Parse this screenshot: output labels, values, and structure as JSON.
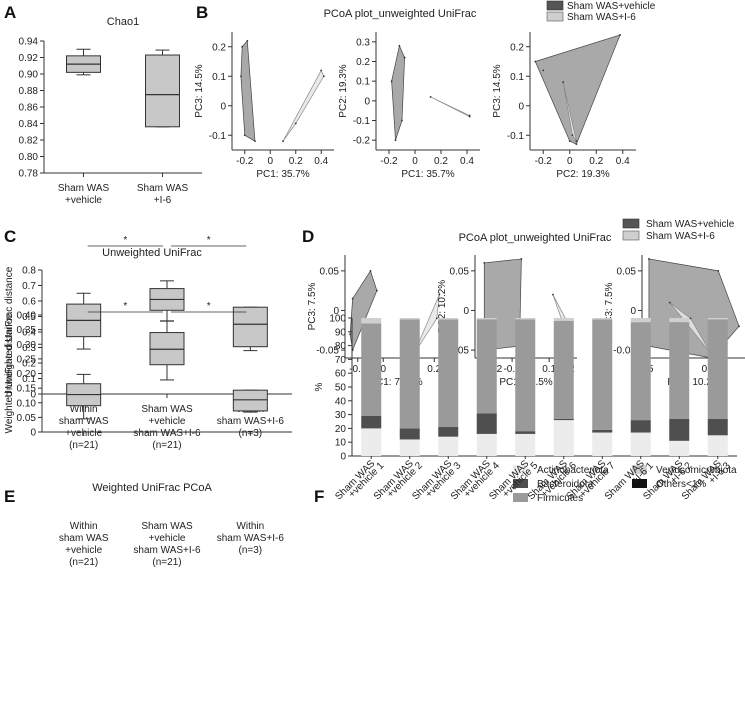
{
  "panels": {
    "A": "A",
    "B": "B",
    "C": "C",
    "D": "D",
    "E": "E",
    "F": "F"
  },
  "legend_wv": "Sham WAS+vehicle",
  "legend_wi": "Sham WAS+I-6",
  "colors": {
    "box": "#c8c8c8",
    "vehicle": "#555555",
    "i6": "#cfcfcf",
    "actino": "#ececec",
    "bacter": "#4f4f4f",
    "firm": "#9a9a9a",
    "verruco": "#cfcfcf",
    "others": "#111111"
  },
  "chart_data": [
    {
      "id": "A",
      "type": "box",
      "title": "Chao1",
      "ylim": [
        0.78,
        0.94
      ],
      "yticks": [
        "0.78",
        "0.80",
        "0.82",
        "0.84",
        "0.86",
        "0.88",
        "0.90",
        "0.92",
        "0.94"
      ],
      "categories": [
        [
          "Sham WAS",
          "+vehicle"
        ],
        [
          "Sham WAS",
          "+I-6"
        ]
      ],
      "boxes": [
        {
          "min": 0.899,
          "q1": 0.902,
          "median": 0.912,
          "q3": 0.922,
          "max": 0.93
        },
        {
          "min": 0.836,
          "q1": 0.836,
          "median": 0.875,
          "q3": 0.923,
          "max": 0.929
        }
      ]
    },
    {
      "id": "B",
      "type": "scatter",
      "title": "PCoA plot_unweighted UniFrac",
      "subplots": [
        {
          "xlabel": "PC1: 35.7%",
          "ylabel": "PC3: 14.5%",
          "xlim": [
            -0.3,
            0.5
          ],
          "ylim": [
            -0.15,
            0.25
          ],
          "xticks": [
            "-0.2",
            "0",
            "0.2",
            "0.4"
          ],
          "yticks": [
            "-0.1",
            "0",
            "0.1",
            "0.2"
          ],
          "vehicle": [
            [
              -0.22,
              0.2
            ],
            [
              -0.18,
              0.22
            ],
            [
              -0.12,
              -0.12
            ],
            [
              -0.2,
              -0.1
            ],
            [
              -0.23,
              0.1
            ]
          ],
          "i6": [
            [
              0.1,
              -0.12
            ],
            [
              0.42,
              0.1
            ],
            [
              0.4,
              0.12
            ],
            [
              0.2,
              -0.06
            ]
          ]
        },
        {
          "xlabel": "PC1: 35.7%",
          "ylabel": "PC2: 19.3%",
          "xlim": [
            -0.3,
            0.5
          ],
          "ylim": [
            -0.25,
            0.35
          ],
          "xticks": [
            "-0.2",
            "0",
            "0.2",
            "0.4"
          ],
          "yticks": [
            "-0.2",
            "-0.1",
            "0",
            "0.1",
            "0.2",
            "0.3"
          ],
          "vehicle": [
            [
              -0.12,
              0.28
            ],
            [
              -0.08,
              0.22
            ],
            [
              -0.1,
              -0.1
            ],
            [
              -0.15,
              -0.2
            ],
            [
              -0.18,
              0.1
            ]
          ],
          "i6": [
            [
              0.12,
              0.02
            ],
            [
              0.42,
              -0.08
            ],
            [
              0.42,
              -0.075
            ]
          ]
        },
        {
          "xlabel": "PC2: 19.3%",
          "ylabel": "PC3: 14.5%",
          "xlim": [
            -0.3,
            0.5
          ],
          "ylim": [
            -0.15,
            0.25
          ],
          "xticks": [
            "-0.2",
            "0",
            "0.2",
            "0.4"
          ],
          "yticks": [
            "-0.1",
            "0",
            "0.1",
            "0.2"
          ],
          "vehicle": [
            [
              -0.26,
              0.15
            ],
            [
              -0.2,
              0.12
            ],
            [
              0.38,
              0.24
            ],
            [
              0.05,
              -0.13
            ],
            [
              0.0,
              -0.12
            ]
          ],
          "i6": [
            [
              -0.05,
              0.08
            ],
            [
              0.05,
              -0.12
            ],
            [
              0.02,
              -0.1
            ]
          ]
        }
      ]
    },
    {
      "id": "C",
      "type": "box",
      "title": "Unweighted UniFrac",
      "ylabel": "Unweighted UniFrac distance",
      "ylim": [
        0,
        0.8
      ],
      "yticks": [
        "0",
        "0.1",
        "0.2",
        "0.3",
        "0.4",
        "0.5",
        "0.6",
        "0.7",
        "0.8"
      ],
      "categories": [
        [
          "Within",
          "sham WAS",
          "+vehicle",
          "(n=21)"
        ],
        [
          "Sham WAS",
          "+vehicle",
          "sham WAS+I-6",
          "(n=21)"
        ],
        [
          "Within",
          "sham WAS+I-6",
          "(n=3)"
        ]
      ],
      "boxes": [
        {
          "min": 0.29,
          "q1": 0.37,
          "median": 0.475,
          "q3": 0.58,
          "max": 0.65
        },
        {
          "min": 0.47,
          "q1": 0.54,
          "median": 0.61,
          "q3": 0.68,
          "max": 0.73
        },
        {
          "min": 0.28,
          "q1": 0.305,
          "median": 0.45,
          "q3": 0.56,
          "max": 0.56
        }
      ],
      "significance": [
        "*",
        "*"
      ]
    },
    {
      "id": "D",
      "type": "scatter",
      "title": "PCoA plot_unweighted UniFrac",
      "subplots": [
        {
          "xlabel": "PC1: 76.5%",
          "ylabel": "PC3: 7.5%",
          "xlim": [
            -0.15,
            0.25
          ],
          "ylim": [
            -0.06,
            0.07
          ],
          "xticks": [
            "-0.1",
            "0",
            "0.1",
            "0.2"
          ],
          "yticks": [
            "-0.05",
            "0",
            "0.05"
          ],
          "vehicle": [
            [
              -0.12,
              0.015
            ],
            [
              -0.05,
              0.05
            ],
            [
              -0.025,
              0.025
            ],
            [
              -0.12,
              -0.05
            ],
            [
              -0.13,
              -0.03
            ]
          ],
          "i6": [
            [
              0.12,
              -0.055
            ],
            [
              0.22,
              0.02
            ],
            [
              0.21,
              -0.01
            ]
          ]
        },
        {
          "xlabel": "PC1: 76.5%",
          "ylabel": "PC2: 10.2%",
          "xlim": [
            -0.3,
            0.25
          ],
          "ylim": [
            -0.06,
            0.07
          ],
          "xticks": [
            "-0.2",
            "-0.1",
            "0",
            "0.1",
            "0.2"
          ],
          "yticks": [
            "-0.05",
            "0",
            "0.05"
          ],
          "vehicle": [
            [
              -0.25,
              0.06
            ],
            [
              -0.05,
              0.065
            ],
            [
              -0.06,
              -0.045
            ],
            [
              -0.25,
              -0.05
            ]
          ],
          "i6": [
            [
              0.12,
              0.02
            ],
            [
              0.21,
              -0.02
            ],
            [
              0.18,
              -0.02
            ]
          ]
        },
        {
          "xlabel": "PC2: 10.2%",
          "ylabel": "PC3: 7.5%",
          "xlim": [
            -0.05,
            0.1
          ],
          "ylim": [
            -0.06,
            0.07
          ],
          "xticks": [
            "-0.05",
            "0",
            "0.05"
          ],
          "yticks": [
            "-0.05",
            "0",
            "0.05"
          ],
          "vehicle": [
            [
              -0.04,
              0.065
            ],
            [
              0.06,
              0.05
            ],
            [
              0.09,
              -0.02
            ],
            [
              0.05,
              -0.06
            ],
            [
              -0.04,
              -0.045
            ]
          ],
          "i6": [
            [
              -0.01,
              0.01
            ],
            [
              0.02,
              -0.01
            ],
            [
              0.05,
              -0.055
            ]
          ]
        }
      ]
    },
    {
      "id": "E",
      "type": "box",
      "title": "Weighted UniFrac PCoA",
      "ylabel": "Weighted UniFrac distance",
      "ylim": [
        0,
        0.4
      ],
      "yticks": [
        "0",
        "0.05",
        "0.10",
        "0.15",
        "0.20",
        "0.25",
        "0.30",
        "0.35",
        "0.40"
      ],
      "categories": [
        [
          "Within",
          "sham WAS",
          "+vehicle",
          "(n=21)"
        ],
        [
          "Sham WAS",
          "+vehicle",
          "sham WAS+I-6",
          "(n=21)"
        ],
        [
          "Within",
          "sham WAS+I-6",
          "(n=3)"
        ]
      ],
      "boxes": [
        {
          "min": 0.045,
          "q1": 0.09,
          "median": 0.128,
          "q3": 0.165,
          "max": 0.197
        },
        {
          "min": 0.178,
          "q1": 0.23,
          "median": 0.283,
          "q3": 0.34,
          "max": 0.38
        },
        {
          "min": 0.068,
          "q1": 0.072,
          "median": 0.11,
          "q3": 0.143,
          "max": 0.143
        }
      ],
      "significance": [
        "*",
        "*"
      ]
    },
    {
      "id": "F",
      "type": "stacked-bar",
      "ylabel": "%",
      "ylim": [
        0,
        100
      ],
      "yticks": [
        "0",
        "10",
        "20",
        "30",
        "40",
        "50",
        "60",
        "70",
        "80",
        "90",
        "100"
      ],
      "categories": [
        [
          "Sham WAS",
          "+vehicle 1"
        ],
        [
          "Sham WAS",
          "+vehicle 2"
        ],
        [
          "Sham WAS",
          "+vehicle 3"
        ],
        [
          "Sham WAS",
          "+vehicle 4"
        ],
        [
          "Sham WAS",
          "+vehicle 5"
        ],
        [
          "Sham WAS",
          "+vehicle 6"
        ],
        [
          "Sham WAS",
          "+vehicle 7"
        ],
        [
          "Sham WAS",
          "+I-6 1"
        ],
        [
          "Sham WAS",
          "+I-6 2"
        ],
        [
          "Sham WAS",
          "+I-6 3"
        ]
      ],
      "series": [
        {
          "name": "Actinobacteriota",
          "values": [
            20,
            12,
            14,
            16,
            16,
            26,
            17,
            17,
            11,
            15
          ]
        },
        {
          "name": "Bacteroidota",
          "values": [
            9,
            8,
            7,
            15,
            2,
            1,
            2,
            9,
            16,
            12
          ]
        },
        {
          "name": "Firmicutes",
          "values": [
            67,
            79,
            78,
            68,
            81,
            71,
            80,
            71,
            70,
            72
          ]
        },
        {
          "name": "Verrucomicrobiota",
          "values": [
            4,
            1,
            1,
            1,
            1,
            2,
            1,
            3,
            3,
            1
          ]
        },
        {
          "name": "Others<1%",
          "values": [
            0,
            0,
            0,
            0,
            0,
            0,
            0,
            0,
            0,
            0
          ]
        }
      ]
    }
  ]
}
